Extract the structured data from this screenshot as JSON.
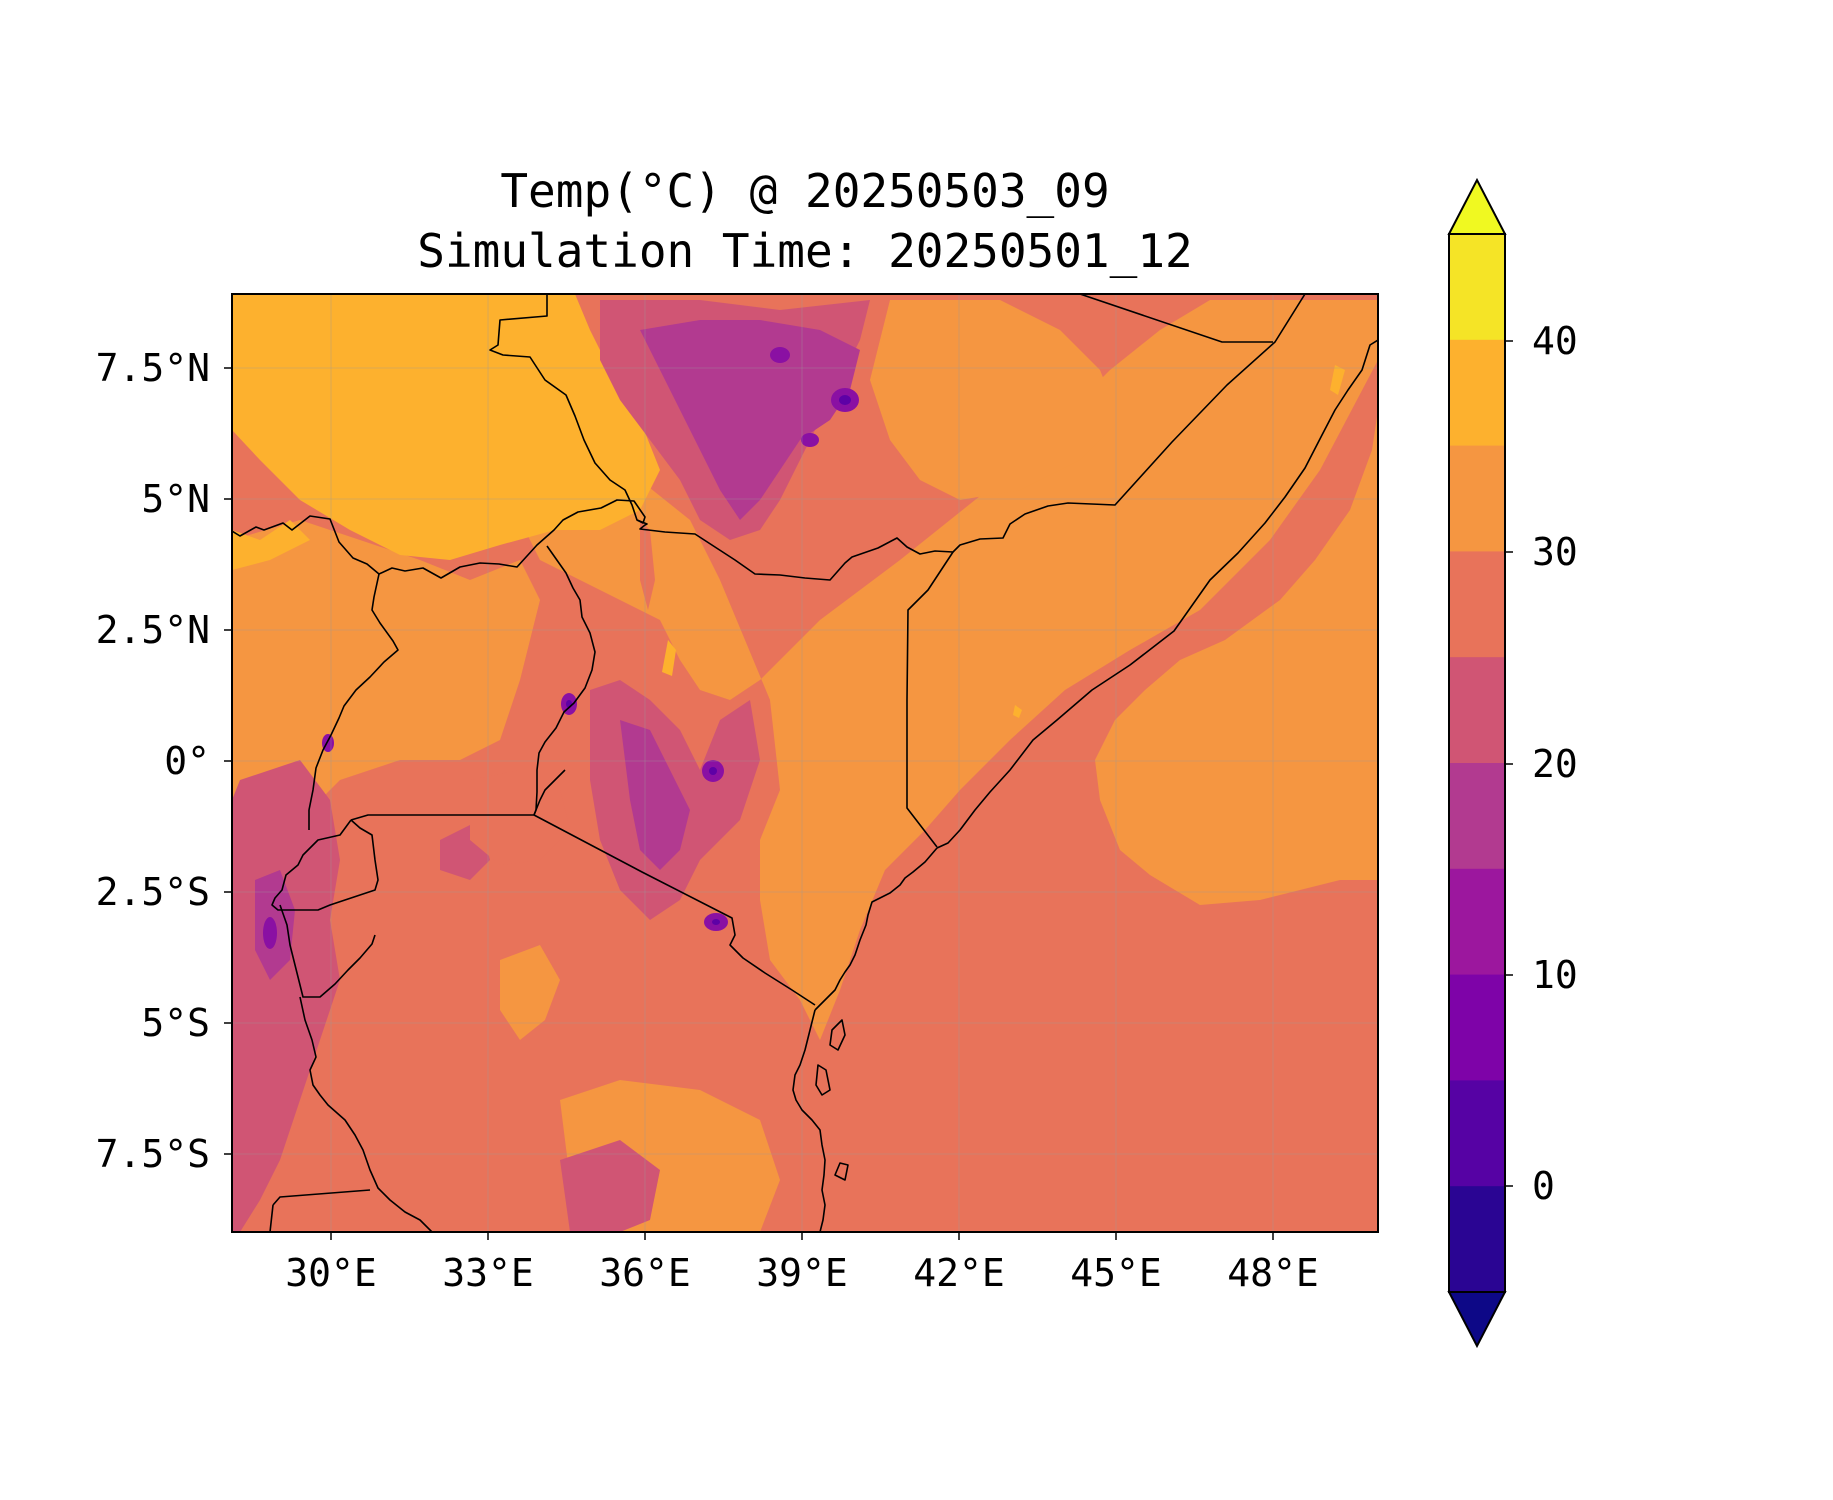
{
  "title": {
    "line1": "Temp(°C) @ 20250503_09",
    "line2": "Simulation Time: 20250501_12"
  },
  "map": {
    "x_ticks": [
      "30°E",
      "33°E",
      "36°E",
      "39°E",
      "42°E",
      "45°E",
      "48°E"
    ],
    "y_ticks": [
      "7.5°N",
      "5°N",
      "2.5°N",
      "0°",
      "2.5°S",
      "5°S",
      "7.5°S"
    ],
    "palette": {
      "yellow": "#f9f02f",
      "gold": "#fdb12e",
      "orange": "#f59641",
      "salmon": "#e8735a",
      "rose": "#d05574",
      "magenta": "#b23a90",
      "purple": "#8a10a3",
      "violet": "#5e01a6",
      "indigo": "#2a0593"
    }
  },
  "colorbar": {
    "tick_labels": [
      "40",
      "30",
      "20",
      "10",
      "0"
    ],
    "colors_top_to_bottom": [
      "#f0f921",
      "#f5e426",
      "#fdb12e",
      "#f59641",
      "#e8735a",
      "#d05574",
      "#b23a90",
      "#9c179e",
      "#7e03a8",
      "#5602a4",
      "#2a0593",
      "#0d0887"
    ]
  }
}
